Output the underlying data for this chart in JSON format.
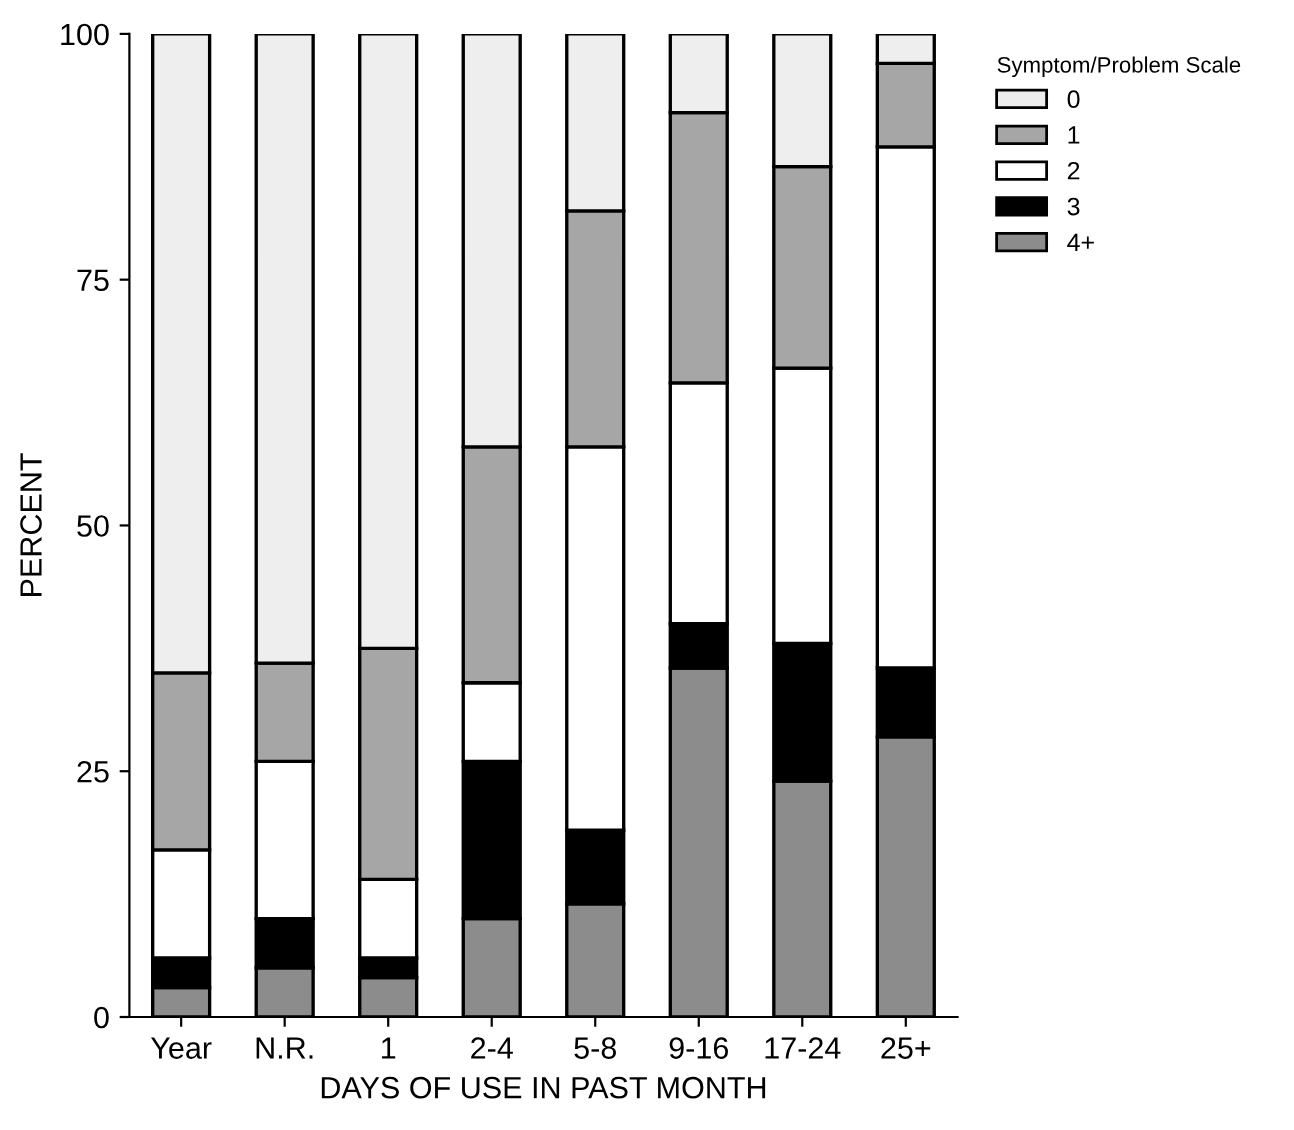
{
  "chart_data": {
    "type": "bar",
    "stacked": true,
    "xlabel": "DAYS OF USE IN PAST MONTH",
    "ylabel": "PERCENT",
    "legend_title": "Symptom/Problem Scale",
    "legend": "right",
    "categories": [
      "Year",
      "N.R.",
      "1",
      "2-4",
      "5-8",
      "9-16",
      "17-24",
      "25+"
    ],
    "series": [
      {
        "name": "4+",
        "color": "#8c8c8c",
        "values": [
          3,
          5,
          4,
          10,
          11.5,
          35.5,
          24,
          28.5
        ]
      },
      {
        "name": "3",
        "color": "#000000",
        "values": [
          3,
          5,
          2,
          16,
          7.5,
          4.5,
          14,
          7
        ]
      },
      {
        "name": "2",
        "color": "#ffffff",
        "values": [
          11,
          16,
          8,
          8,
          39,
          24.5,
          28,
          53
        ]
      },
      {
        "name": "1",
        "color": "#a6a6a6",
        "values": [
          18,
          10,
          23.5,
          24,
          24,
          27.5,
          20.5,
          8.5
        ]
      },
      {
        "name": "0",
        "color": "#eeeeee",
        "values": [
          65,
          64,
          62.5,
          42,
          18,
          8,
          13.5,
          3
        ]
      }
    ],
    "ylim": [
      0,
      100
    ],
    "yticks": [
      0,
      25,
      50,
      75,
      100
    ],
    "grid": false
  }
}
